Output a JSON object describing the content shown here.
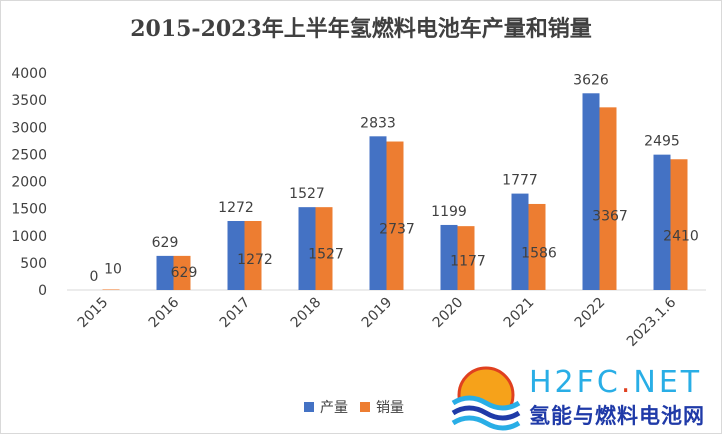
{
  "chart_data": {
    "type": "bar",
    "title": "2015-2023年上半年氢燃料电池车产量和销量",
    "categories": [
      "2015",
      "2016",
      "2017",
      "2018",
      "2019",
      "2020",
      "2021",
      "2022",
      "2023.1.6"
    ],
    "series": [
      {
        "name": "产量",
        "color": "#4472c4",
        "values": [
          0,
          629,
          1272,
          1527,
          2833,
          1199,
          1777,
          3626,
          2495
        ]
      },
      {
        "name": "销量",
        "color": "#ed7d31",
        "values": [
          10,
          629,
          1272,
          1527,
          2737,
          1177,
          1586,
          3367,
          2410
        ]
      }
    ],
    "yticks": [
      "0",
      "500",
      "1000",
      "1500",
      "2000",
      "2500",
      "3000",
      "3500",
      "4000"
    ],
    "ylim": [
      0,
      4000
    ],
    "grid": false,
    "legend_position": "bottom"
  },
  "brand": {
    "name_prefix": "H2FC",
    "name_dot": ".",
    "name_suffix": "NET",
    "subtitle": "氢能与燃料电池网"
  }
}
